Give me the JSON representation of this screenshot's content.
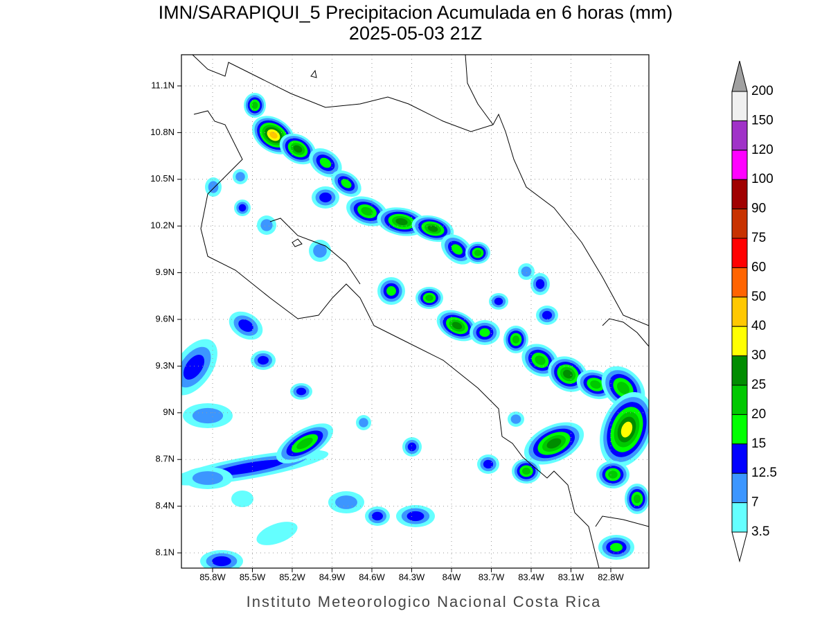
{
  "header": {
    "title": "IMN/SARAPIQUI_5 Precipitacion Acumulada en 6 horas (mm)",
    "subtitle": "2025-05-03 21Z"
  },
  "map": {
    "lat_labels": [
      "11.1N",
      "10.8N",
      "10.5N",
      "10.2N",
      "9.9N",
      "9.6N",
      "9.3N",
      "9N",
      "8.7N",
      "8.4N",
      "8.1N"
    ],
    "lon_labels": [
      "85.8W",
      "85.5W",
      "85.2W",
      "84.9W",
      "84.6W",
      "84.3W",
      "84W",
      "83.7W",
      "83.4W",
      "83.1W",
      "82.8W"
    ]
  },
  "colorbar": {
    "levels": [
      200,
      150,
      120,
      100,
      90,
      75,
      60,
      50,
      40,
      30,
      25,
      20,
      15,
      12.5,
      7,
      3.5
    ],
    "over_color": "#a0a0a0",
    "band_colors": [
      "#f0f0f0",
      "#a032c8",
      "#ff00ff",
      "#a00000",
      "#c83200",
      "#ff0000",
      "#ff6400",
      "#ffc800",
      "#ffff00",
      "#008c00",
      "#00c800",
      "#00ff00",
      "#0000ff",
      "#3c96ff",
      "#64ffff"
    ],
    "under_color": "#ffffff"
  },
  "footer": "Instituto Meteorologico Nacional Costa Rica"
}
